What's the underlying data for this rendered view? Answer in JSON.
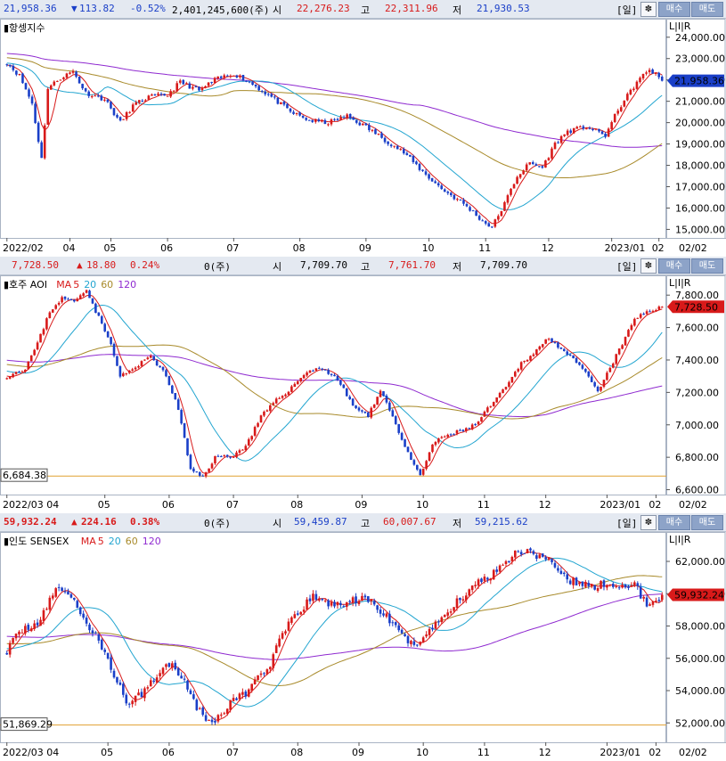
{
  "colors": {
    "up": "#d81a1a",
    "down": "#1a3fc8",
    "ma5": "#d81a1a",
    "ma20": "#22a5d0",
    "ma60": "#a88a2a",
    "ma120": "#8f2ad0"
  },
  "panels": [
    {
      "id": "hsi",
      "header": {
        "price": "21,958.36",
        "change_arrow": "▼",
        "change": "113.82",
        "pct": "-0.52%",
        "volume": "2,401,245,600(주)",
        "open_label": "시",
        "open": "22,276.23",
        "high_label": "고",
        "high": "22,311.96",
        "low_label": "저",
        "low": "21,930.53",
        "period": "[일]",
        "gear": "✽",
        "buy": "매수",
        "sell": "매도"
      },
      "title": "항셍지수",
      "legend": [],
      "scale_label": "L|I|R",
      "price_tag": "21,958.36",
      "ref_tag": "",
      "chart_data": {
        "type": "candlestick",
        "title": "항셍지수",
        "ylim": [
          14600,
          24700
        ],
        "yticks": [
          {
            "v": 24000,
            "label": "24,000.00"
          },
          {
            "v": 23000,
            "label": "23,000.00"
          },
          {
            "v": 22000,
            "label": "22,000.00"
          },
          {
            "v": 21000,
            "label": "21,000.00"
          },
          {
            "v": 20000,
            "label": "20,000.00"
          },
          {
            "v": 19000,
            "label": "19,000.00"
          },
          {
            "v": 18000,
            "label": "18,000.00"
          },
          {
            "v": 17000,
            "label": "17,000.00"
          },
          {
            "v": 16000,
            "label": "16,000.00"
          },
          {
            "v": 15000,
            "label": "15,000.00"
          }
        ],
        "xticks": [
          {
            "i": 0,
            "label": "2022/02"
          },
          {
            "i": 20,
            "label": "04"
          },
          {
            "i": 33,
            "label": "05"
          },
          {
            "i": 51,
            "label": "06"
          },
          {
            "i": 72,
            "label": "07"
          },
          {
            "i": 93,
            "label": "08"
          },
          {
            "i": 114,
            "label": "09"
          },
          {
            "i": 134,
            "label": "10"
          },
          {
            "i": 152,
            "label": "11"
          },
          {
            "i": 172,
            "label": "12"
          },
          {
            "i": 192,
            "label": "2023/01"
          },
          {
            "i": 207,
            "label": "02"
          }
        ],
        "x_end_label": "02/02",
        "anchors": [
          [
            0,
            22800
          ],
          [
            4,
            22200
          ],
          [
            8,
            20900
          ],
          [
            11,
            18300
          ],
          [
            13,
            21600
          ],
          [
            17,
            22100
          ],
          [
            21,
            22400
          ],
          [
            25,
            21400
          ],
          [
            31,
            21100
          ],
          [
            36,
            20000
          ],
          [
            40,
            20800
          ],
          [
            45,
            21200
          ],
          [
            51,
            21300
          ],
          [
            55,
            21900
          ],
          [
            61,
            21500
          ],
          [
            66,
            22000
          ],
          [
            72,
            22300
          ],
          [
            78,
            21800
          ],
          [
            84,
            21200
          ],
          [
            90,
            20500
          ],
          [
            96,
            20100
          ],
          [
            102,
            20000
          ],
          [
            108,
            20300
          ],
          [
            114,
            19800
          ],
          [
            120,
            19200
          ],
          [
            126,
            18600
          ],
          [
            132,
            17700
          ],
          [
            138,
            16900
          ],
          [
            145,
            16200
          ],
          [
            151,
            15400
          ],
          [
            154,
            15100
          ],
          [
            158,
            16200
          ],
          [
            162,
            17500
          ],
          [
            166,
            18100
          ],
          [
            170,
            17900
          ],
          [
            174,
            19000
          ],
          [
            178,
            19600
          ],
          [
            184,
            19800
          ],
          [
            190,
            19400
          ],
          [
            194,
            20600
          ],
          [
            200,
            21900
          ],
          [
            204,
            22500
          ],
          [
            208,
            21960
          ]
        ],
        "seed": 11,
        "vol": 110,
        "ma": [
          {
            "name": "MA120",
            "n": 120,
            "pre": 23800
          },
          {
            "name": "MA60",
            "n": 60,
            "pre": 23400
          },
          {
            "name": "MA20",
            "n": 20,
            "pre": 22900
          },
          {
            "name": "MA5",
            "n": 5,
            "pre": 22700
          }
        ]
      }
    },
    {
      "id": "aoi",
      "header": {
        "price": "7,728.50",
        "change_arrow": "▲",
        "change": "18.80",
        "pct": "0.24%",
        "volume": "0(주)",
        "open_label": "시",
        "open": "7,709.70",
        "high_label": "고",
        "high": "7,761.70",
        "low_label": "저",
        "low": "7,709.70",
        "period": "[일]",
        "gear": "✽",
        "buy": "매수",
        "sell": "매도"
      },
      "title": "호주 AOI",
      "legend": [
        {
          "text": "MA",
          "key": "ma5"
        },
        {
          "text": "5",
          "key": "ma5"
        },
        {
          "text": "20",
          "key": "ma20"
        },
        {
          "text": "60",
          "key": "ma60"
        },
        {
          "text": "120",
          "key": "ma120"
        }
      ],
      "scale_label": "L|I|R",
      "price_tag": "7,728.50",
      "ref_tag": "6,684.38",
      "chart_data": {
        "type": "candlestick",
        "title": "호주 AOI",
        "ylim": [
          6570,
          7900
        ],
        "yticks": [
          {
            "v": 7800,
            "label": "7,800.00"
          },
          {
            "v": 7600,
            "label": "7,600.00"
          },
          {
            "v": 7400,
            "label": "7,400.00"
          },
          {
            "v": 7200,
            "label": "7,200.00"
          },
          {
            "v": 7000,
            "label": "7,000.00"
          },
          {
            "v": 6800,
            "label": "6,800.00"
          },
          {
            "v": 6600,
            "label": "6,600.00"
          }
        ],
        "xticks": [
          {
            "i": 0,
            "label": "2022/03 04"
          },
          {
            "i": 32,
            "label": "05"
          },
          {
            "i": 53,
            "label": "06"
          },
          {
            "i": 74,
            "label": "07"
          },
          {
            "i": 95,
            "label": "08"
          },
          {
            "i": 116,
            "label": "09"
          },
          {
            "i": 136,
            "label": "10"
          },
          {
            "i": 156,
            "label": "11"
          },
          {
            "i": 176,
            "label": "12"
          },
          {
            "i": 196,
            "label": "2023/01"
          },
          {
            "i": 212,
            "label": "02"
          }
        ],
        "x_end_label": "02/02",
        "ref_line": 6684.38,
        "anchors": [
          [
            0,
            7300
          ],
          [
            6,
            7350
          ],
          [
            10,
            7500
          ],
          [
            14,
            7700
          ],
          [
            18,
            7780
          ],
          [
            22,
            7760
          ],
          [
            26,
            7840
          ],
          [
            29,
            7700
          ],
          [
            33,
            7550
          ],
          [
            37,
            7300
          ],
          [
            42,
            7350
          ],
          [
            47,
            7430
          ],
          [
            52,
            7300
          ],
          [
            56,
            7100
          ],
          [
            60,
            6720
          ],
          [
            64,
            6680
          ],
          [
            68,
            6800
          ],
          [
            74,
            6810
          ],
          [
            78,
            6870
          ],
          [
            83,
            7050
          ],
          [
            88,
            7150
          ],
          [
            93,
            7230
          ],
          [
            98,
            7330
          ],
          [
            103,
            7350
          ],
          [
            108,
            7280
          ],
          [
            113,
            7120
          ],
          [
            118,
            7050
          ],
          [
            122,
            7220
          ],
          [
            126,
            7050
          ],
          [
            131,
            6820
          ],
          [
            135,
            6680
          ],
          [
            139,
            6880
          ],
          [
            143,
            6930
          ],
          [
            148,
            6960
          ],
          [
            153,
            7000
          ],
          [
            158,
            7120
          ],
          [
            163,
            7230
          ],
          [
            168,
            7380
          ],
          [
            173,
            7460
          ],
          [
            177,
            7540
          ],
          [
            181,
            7470
          ],
          [
            185,
            7400
          ],
          [
            189,
            7320
          ],
          [
            193,
            7200
          ],
          [
            197,
            7350
          ],
          [
            201,
            7500
          ],
          [
            205,
            7650
          ],
          [
            209,
            7700
          ],
          [
            214,
            7728
          ]
        ],
        "seed": 23,
        "vol": 12,
        "ma": [
          {
            "name": "MA120",
            "n": 120,
            "pre": 7510
          },
          {
            "name": "MA60",
            "n": 60,
            "pre": 7460
          },
          {
            "name": "MA20",
            "n": 20,
            "pre": 7380
          },
          {
            "name": "MA5",
            "n": 5,
            "pre": 7320
          }
        ]
      }
    },
    {
      "id": "sensex",
      "header": {
        "price": "59,932.24",
        "change_arrow": "▲",
        "change": "224.16",
        "pct": "0.38%",
        "volume": "0(주)",
        "open_label": "시",
        "open": "59,459.87",
        "high_label": "고",
        "high": "60,007.67",
        "low_label": "저",
        "low": "59,215.62",
        "period": "[일]",
        "gear": "✽",
        "buy": "매수",
        "sell": "매도"
      },
      "title": "인도 SENSEX",
      "legend": [
        {
          "text": "MA",
          "key": "ma5"
        },
        {
          "text": "5",
          "key": "ma5"
        },
        {
          "text": "20",
          "key": "ma20"
        },
        {
          "text": "60",
          "key": "ma60"
        },
        {
          "text": "120",
          "key": "ma120"
        }
      ],
      "scale_label": "L|I|R",
      "price_tag": "59,932.24",
      "ref_tag": "51,869.29",
      "chart_data": {
        "type": "candlestick",
        "title": "인도 SENSEX",
        "ylim": [
          50800,
          63600
        ],
        "yticks": [
          {
            "v": 62000,
            "label": "62,000.00"
          },
          {
            "v": 60000,
            "label": "60,000.00"
          },
          {
            "v": 58000,
            "label": "58,000.00"
          },
          {
            "v": 56000,
            "label": "56,000.00"
          },
          {
            "v": 54000,
            "label": "54,000.00"
          },
          {
            "v": 52000,
            "label": "52,000.00"
          }
        ],
        "xticks": [
          {
            "i": 0,
            "label": "2022/03 04"
          },
          {
            "i": 33,
            "label": "05"
          },
          {
            "i": 53,
            "label": "06"
          },
          {
            "i": 74,
            "label": "07"
          },
          {
            "i": 95,
            "label": "08"
          },
          {
            "i": 115,
            "label": "09"
          },
          {
            "i": 136,
            "label": "10"
          },
          {
            "i": 156,
            "label": "11"
          },
          {
            "i": 176,
            "label": "12"
          },
          {
            "i": 196,
            "label": "2023/01"
          },
          {
            "i": 212,
            "label": "02"
          }
        ],
        "x_end_label": "02/02",
        "ref_line": 51869.29,
        "anchors": [
          [
            0,
            56500
          ],
          [
            5,
            57800
          ],
          [
            10,
            58200
          ],
          [
            14,
            59500
          ],
          [
            17,
            60500
          ],
          [
            21,
            59800
          ],
          [
            26,
            58200
          ],
          [
            31,
            56700
          ],
          [
            35,
            55000
          ],
          [
            39,
            53200
          ],
          [
            44,
            53800
          ],
          [
            49,
            55000
          ],
          [
            54,
            55800
          ],
          [
            58,
            54600
          ],
          [
            62,
            53000
          ],
          [
            66,
            52000
          ],
          [
            70,
            52500
          ],
          [
            74,
            53500
          ],
          [
            78,
            53800
          ],
          [
            82,
            54900
          ],
          [
            86,
            55600
          ],
          [
            90,
            57500
          ],
          [
            95,
            58800
          ],
          [
            100,
            59800
          ],
          [
            105,
            59400
          ],
          [
            110,
            59300
          ],
          [
            115,
            59700
          ],
          [
            120,
            59400
          ],
          [
            125,
            58300
          ],
          [
            130,
            57200
          ],
          [
            134,
            56900
          ],
          [
            138,
            57700
          ],
          [
            143,
            58700
          ],
          [
            148,
            59700
          ],
          [
            153,
            60600
          ],
          [
            158,
            61200
          ],
          [
            163,
            62000
          ],
          [
            167,
            62700
          ],
          [
            172,
            62500
          ],
          [
            176,
            62200
          ],
          [
            180,
            61200
          ],
          [
            184,
            60800
          ],
          [
            188,
            60600
          ],
          [
            192,
            60400
          ],
          [
            196,
            60700
          ],
          [
            201,
            60300
          ],
          [
            205,
            60600
          ],
          [
            209,
            59300
          ],
          [
            214,
            59932
          ]
        ],
        "seed": 37,
        "vol": 260,
        "ma": [
          {
            "name": "MA120",
            "n": 120,
            "pre": 58500
          },
          {
            "name": "MA60",
            "n": 60,
            "pre": 57600
          },
          {
            "name": "MA20",
            "n": 20,
            "pre": 57000
          },
          {
            "name": "MA5",
            "n": 5,
            "pre": 56800
          }
        ]
      }
    }
  ]
}
